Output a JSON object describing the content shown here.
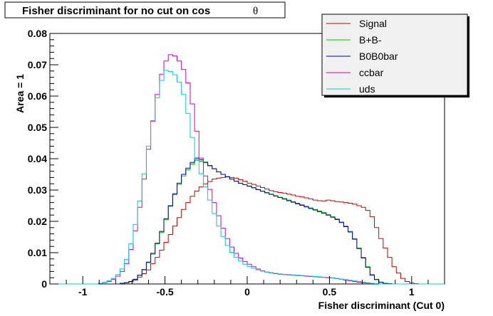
{
  "chart_data": {
    "type": "line",
    "title": "Fisher discriminant for no cut on cos",
    "title_symbol": "θ",
    "xlabel": "Fisher discriminant (Cut 0)",
    "ylabel": "Area = 1",
    "xlim": [
      -1.2,
      1.2
    ],
    "ylim": [
      0,
      0.08
    ],
    "x_ticks": [
      -1,
      -0.5,
      0,
      0.5,
      1
    ],
    "x_tick_labels": [
      "-1",
      "-0.5",
      "0",
      "0.5",
      "1"
    ],
    "y_ticks": [
      0,
      0.01,
      0.02,
      0.03,
      0.04,
      0.05,
      0.06,
      0.07,
      0.08
    ],
    "y_tick_labels": [
      "0",
      "0.01",
      "0.02",
      "0.03",
      "0.04",
      "0.05",
      "0.06",
      "0.07",
      "0.08"
    ],
    "grid": false,
    "legend_position": "top-right",
    "histogram": true,
    "bin_edges_range": [
      -1.2,
      1.2
    ],
    "series": [
      {
        "name": "Signal",
        "color": "#cc0000",
        "values": [
          0,
          0,
          0,
          0,
          0,
          0,
          0,
          0,
          0,
          0,
          0,
          0,
          0,
          0,
          0,
          0,
          0.0002,
          0.0004,
          0.0007,
          0.0012,
          0.0022,
          0.0033,
          0.0045,
          0.0065,
          0.0085,
          0.0108,
          0.0133,
          0.0158,
          0.0185,
          0.0212,
          0.0238,
          0.026,
          0.028,
          0.0297,
          0.031,
          0.032,
          0.0327,
          0.0335,
          0.0338,
          0.034,
          0.0343,
          0.034,
          0.0338,
          0.0333,
          0.0328,
          0.0322,
          0.0318,
          0.0313,
          0.0308,
          0.0303,
          0.0298,
          0.0295,
          0.0292,
          0.029,
          0.0287,
          0.0284,
          0.028,
          0.0278,
          0.0275,
          0.0272,
          0.0268,
          0.0266,
          0.0265,
          0.0268,
          0.0266,
          0.0263,
          0.0262,
          0.026,
          0.0258,
          0.0255,
          0.025,
          0.0245,
          0.0235,
          0.0215,
          0.018,
          0.0145,
          0.0115,
          0.0085,
          0.0055,
          0.0035,
          0.0018,
          0.0008,
          0.0003,
          0.0001,
          0,
          0,
          0,
          0,
          0,
          0
        ]
      },
      {
        "name": "B+B-",
        "color": "#00cc00",
        "values": [
          0,
          0,
          0,
          0,
          0,
          0,
          0,
          0,
          0,
          0,
          0,
          0,
          0,
          0,
          0,
          0,
          0.0002,
          0.0004,
          0.0008,
          0.0015,
          0.0028,
          0.0045,
          0.0068,
          0.0095,
          0.0128,
          0.0165,
          0.0205,
          0.0248,
          0.0285,
          0.0318,
          0.0345,
          0.0365,
          0.0383,
          0.0395,
          0.0392,
          0.0387,
          0.0377,
          0.0368,
          0.0358,
          0.035,
          0.0342,
          0.0335,
          0.0328,
          0.0322,
          0.0317,
          0.0313,
          0.0308,
          0.0302,
          0.0297,
          0.0292,
          0.0287,
          0.0282,
          0.0277,
          0.0273,
          0.0268,
          0.0263,
          0.0258,
          0.0253,
          0.0248,
          0.0243,
          0.0238,
          0.0233,
          0.0228,
          0.0222,
          0.0215,
          0.0208,
          0.0198,
          0.0185,
          0.0168,
          0.0145,
          0.0115,
          0.0085,
          0.0055,
          0.003,
          0.0015,
          0.0006,
          0.0002,
          0.0001,
          0,
          0,
          0,
          0,
          0,
          0,
          0,
          0,
          0,
          0,
          0,
          0
        ]
      },
      {
        "name": "B0B0bar",
        "color": "#000099",
        "values": [
          0,
          0,
          0,
          0,
          0,
          0,
          0,
          0,
          0,
          0,
          0,
          0,
          0,
          0,
          0,
          0,
          0.0002,
          0.0004,
          0.0008,
          0.0015,
          0.0028,
          0.0046,
          0.007,
          0.0098,
          0.013,
          0.0168,
          0.0208,
          0.025,
          0.0288,
          0.0322,
          0.035,
          0.037,
          0.0388,
          0.0402,
          0.0397,
          0.0389,
          0.0378,
          0.0368,
          0.0358,
          0.035,
          0.0342,
          0.0335,
          0.0328,
          0.0322,
          0.0317,
          0.0312,
          0.0307,
          0.0301,
          0.0296,
          0.0291,
          0.0286,
          0.0281,
          0.0276,
          0.0271,
          0.0266,
          0.0261,
          0.0256,
          0.0251,
          0.0246,
          0.0241,
          0.0236,
          0.0231,
          0.0226,
          0.022,
          0.0213,
          0.0206,
          0.0196,
          0.0183,
          0.0166,
          0.0143,
          0.0113,
          0.0083,
          0.0053,
          0.0028,
          0.0014,
          0.0005,
          0.0002,
          0.0001,
          0,
          0,
          0,
          0,
          0,
          0,
          0,
          0,
          0,
          0,
          0,
          0
        ]
      },
      {
        "name": "ccbar",
        "color": "#cc00cc",
        "values": [
          0,
          0,
          0,
          0,
          0,
          0,
          0,
          0,
          0,
          0,
          0,
          0.0002,
          0.0004,
          0.0008,
          0.0015,
          0.0025,
          0.004,
          0.0065,
          0.011,
          0.017,
          0.0245,
          0.0335,
          0.043,
          0.052,
          0.0605,
          0.067,
          0.0712,
          0.0732,
          0.0728,
          0.0712,
          0.0685,
          0.0642,
          0.0575,
          0.0488,
          0.0402,
          0.0345,
          0.0302,
          0.026,
          0.0218,
          0.0178,
          0.0145,
          0.0118,
          0.0098,
          0.0083,
          0.0072,
          0.0063,
          0.0055,
          0.0048,
          0.0042,
          0.0038,
          0.0035,
          0.0033,
          0.0031,
          0.003,
          0.0029,
          0.0028,
          0.0027,
          0.0026,
          0.0025,
          0.0024,
          0.0023,
          0.0022,
          0.0021,
          0.002,
          0.0019,
          0.0017,
          0.0015,
          0.0012,
          0.001,
          0.0008,
          0.0006,
          0.0004,
          0.0003,
          0.0002,
          0.0001,
          0,
          0,
          0,
          0,
          0,
          0,
          0,
          0,
          0,
          0,
          0,
          0,
          0,
          0,
          0
        ]
      },
      {
        "name": "uds",
        "color": "#00cccc",
        "values": [
          0,
          0,
          0,
          0,
          0,
          0,
          0,
          0,
          0,
          0,
          0,
          0.0002,
          0.0005,
          0.001,
          0.0018,
          0.003,
          0.0048,
          0.0078,
          0.0128,
          0.019,
          0.0265,
          0.0352,
          0.044,
          0.0522,
          0.0595,
          0.065,
          0.0682,
          0.0678,
          0.0668,
          0.0645,
          0.0605,
          0.0545,
          0.0468,
          0.0398,
          0.0352,
          0.031,
          0.0268,
          0.0225,
          0.0185,
          0.0152,
          0.0123,
          0.0101,
          0.0085,
          0.0073,
          0.0063,
          0.0056,
          0.005,
          0.0045,
          0.0041,
          0.0038,
          0.0036,
          0.0034,
          0.0032,
          0.0031,
          0.003,
          0.0029,
          0.0028,
          0.0027,
          0.0026,
          0.0025,
          0.0024,
          0.0023,
          0.0022,
          0.0021,
          0.002,
          0.0018,
          0.0016,
          0.0014,
          0.0012,
          0.001,
          0.0008,
          0.0006,
          0.0004,
          0.0002,
          0.0001,
          0,
          0,
          0,
          0,
          0,
          0,
          0,
          0,
          0,
          0,
          0,
          0,
          0,
          0,
          0
        ]
      }
    ]
  }
}
